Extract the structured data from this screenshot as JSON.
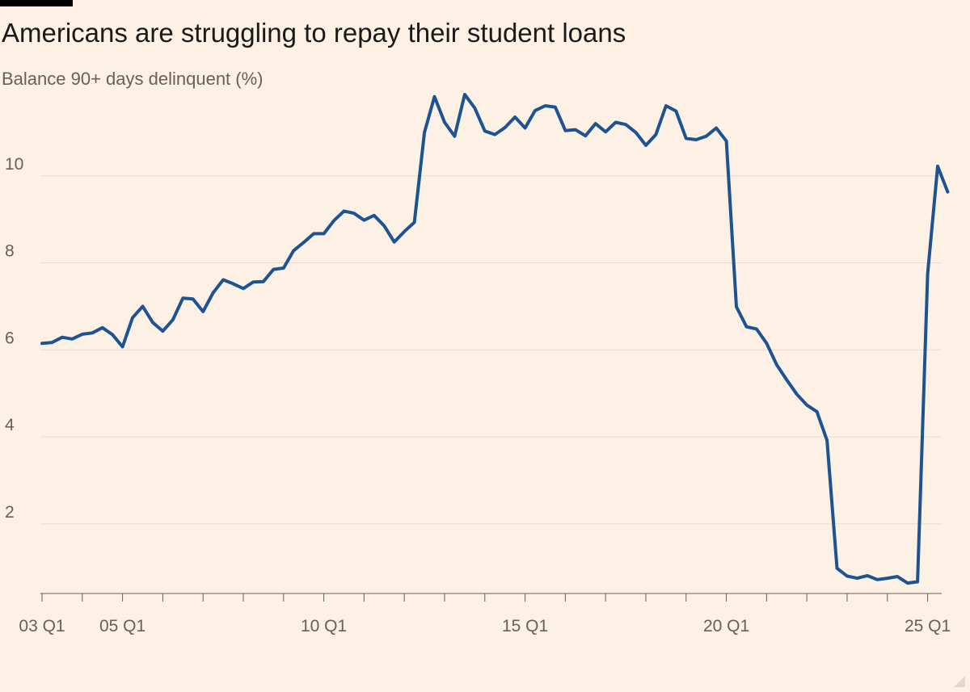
{
  "chart_data": {
    "type": "line",
    "title": "Americans are struggling to repay their student loans",
    "subtitle": "Balance 90+ days delinquent (%)",
    "xlabel": "",
    "ylabel": "",
    "x_tick_labels": [
      "03 Q1",
      "05 Q1",
      "10 Q1",
      "15 Q1",
      "20 Q1",
      "25 Q1"
    ],
    "y_ticks": [
      2,
      4,
      6,
      8,
      10
    ],
    "ylim": [
      0.4,
      12
    ],
    "x_start": "2003 Q1",
    "x_end": "2025 Q2",
    "grid": true,
    "colors": {
      "line": "#1d5391",
      "background": "#fdf1e6",
      "grid": "#e8ddd2",
      "axis": "#66605b"
    },
    "series": [
      {
        "values": [
          6.15,
          6.17,
          6.29,
          6.25,
          6.36,
          6.39,
          6.51,
          6.35,
          6.07,
          6.74,
          7.0,
          6.63,
          6.43,
          6.69,
          7.19,
          7.17,
          6.88,
          7.31,
          7.61,
          7.52,
          7.41,
          7.56,
          7.57,
          7.85,
          7.88,
          8.28,
          8.47,
          8.67,
          8.67,
          8.97,
          9.19,
          9.14,
          8.98,
          9.09,
          8.85,
          8.48,
          8.72,
          8.93,
          11.0,
          11.82,
          11.23,
          10.91,
          11.87,
          11.56,
          11.03,
          10.95,
          11.11,
          11.35,
          11.1,
          11.5,
          11.61,
          11.58,
          11.04,
          11.06,
          10.92,
          11.2,
          11.01,
          11.23,
          11.18,
          11.0,
          10.7,
          10.95,
          11.61,
          11.49,
          10.86,
          10.83,
          10.91,
          11.1,
          10.8,
          6.99,
          6.53,
          6.48,
          6.15,
          5.66,
          5.31,
          4.98,
          4.73,
          4.58,
          3.92,
          0.98,
          0.8,
          0.75,
          0.81,
          0.72,
          0.75,
          0.79,
          0.64,
          0.67,
          7.75,
          10.22,
          9.63
        ]
      }
    ]
  }
}
